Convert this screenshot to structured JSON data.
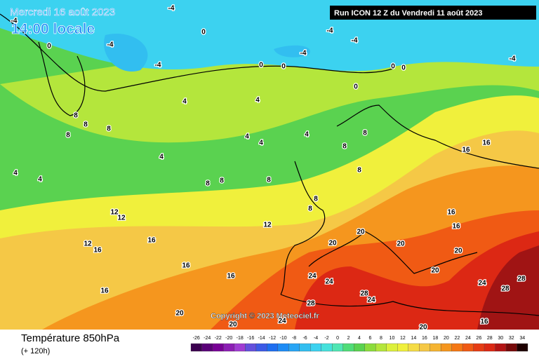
{
  "header": {
    "date": "Mercredi 16 août 2023",
    "time": "14:00 locale",
    "run": "Run ICON 12 Z du Vendredi 11 août 2023"
  },
  "copyright": "Copyright © 2023 Meteociel.fr",
  "footer": {
    "title": "Température 850hPa",
    "lead": "(+ 120h)"
  },
  "legend": {
    "labels": [
      -26,
      -24,
      -22,
      -20,
      -18,
      -16,
      -14,
      -12,
      -10,
      -8,
      -6,
      -4,
      -2,
      0,
      2,
      4,
      6,
      8,
      10,
      12,
      14,
      16,
      18,
      20,
      22,
      24,
      26,
      28,
      30,
      32,
      34
    ],
    "colors": [
      "#3c0050",
      "#5a0078",
      "#780096",
      "#8c1eb4",
      "#a03cd2",
      "#6450dc",
      "#3c5ae6",
      "#1e6ef0",
      "#1e8cf5",
      "#28a5f5",
      "#32bef0",
      "#3cd2f0",
      "#46e1dc",
      "#50e6b4",
      "#50dc78",
      "#5ad250",
      "#8cdc3c",
      "#b4e63c",
      "#dcf03c",
      "#f0f03c",
      "#f5dc46",
      "#f5c846",
      "#f5b432",
      "#f5961e",
      "#f57814",
      "#f05a14",
      "#e63c14",
      "#dc2814",
      "#b41414",
      "#780a0a",
      "#1e0000"
    ]
  },
  "map_labels": [
    "-4",
    "-4",
    "0",
    "-4",
    "-4",
    "0",
    "-4",
    "0",
    "0",
    "-4",
    "-4",
    "0",
    "0",
    "-4",
    "0",
    "4",
    "4",
    "4",
    "8",
    "8",
    "8",
    "8",
    "4",
    "4",
    "4",
    "8",
    "8",
    "8",
    "4",
    "4",
    "8",
    "8",
    "8",
    "8",
    "16",
    "16",
    "12",
    "12",
    "12",
    "12",
    "16",
    "16",
    "16",
    "16",
    "16",
    "20",
    "20",
    "20",
    "24",
    "24",
    "28",
    "28",
    "24",
    "24",
    "20",
    "16",
    "20",
    "24",
    "28",
    "28",
    "20",
    "16",
    "16",
    "20",
    "20",
    "8"
  ]
}
